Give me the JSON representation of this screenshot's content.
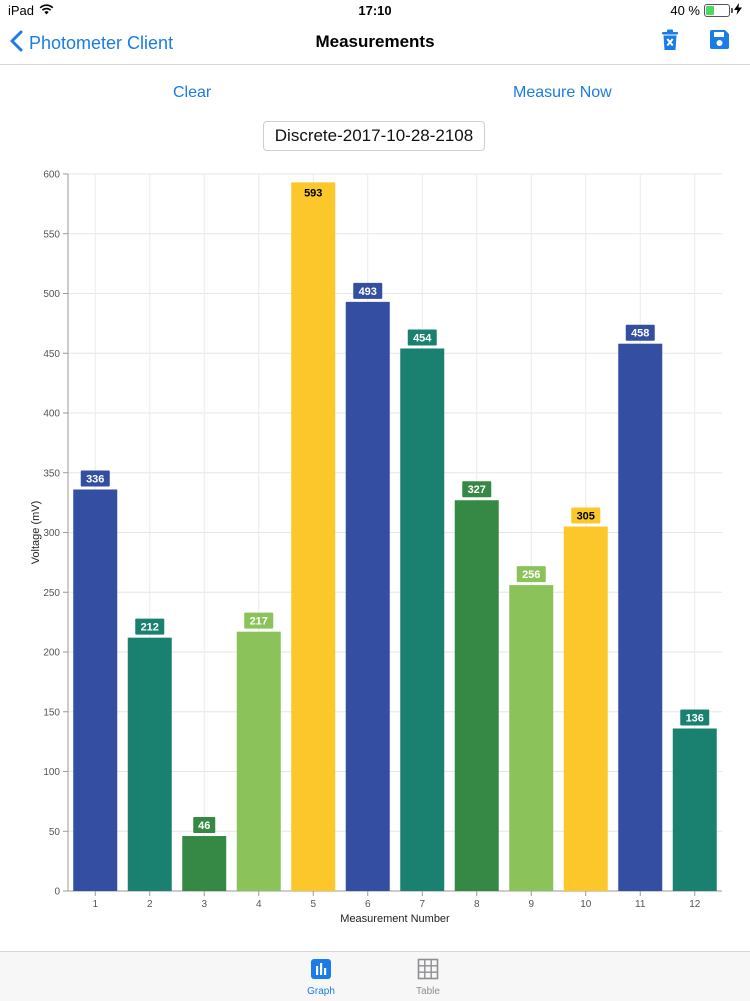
{
  "status": {
    "device": "iPad",
    "time": "17:10",
    "battery": "40 %",
    "battery_level": 0.4
  },
  "nav": {
    "back_label": "Photometer Client",
    "title": "Measurements",
    "icons": [
      "trash-icon",
      "save-icon"
    ]
  },
  "actions": {
    "clear": "Clear",
    "measure_now": "Measure Now"
  },
  "measurement_name": "Discrete-2017-10-28-2108",
  "chart_data": {
    "type": "bar",
    "categories": [
      "1",
      "2",
      "3",
      "4",
      "5",
      "6",
      "7",
      "8",
      "9",
      "10",
      "11",
      "12"
    ],
    "values": [
      336,
      212,
      46,
      217,
      593,
      493,
      454,
      327,
      256,
      305,
      458,
      136
    ],
    "colors": [
      "#344ea1",
      "#1a8170",
      "#368944",
      "#8bc35a",
      "#fcc72a",
      "#344ea1",
      "#1a8170",
      "#368944",
      "#8bc35a",
      "#fcc72a",
      "#344ea1",
      "#1a8170"
    ],
    "label_text_colors": [
      "#ffffff",
      "#ffffff",
      "#ffffff",
      "#ffffff",
      "#000000",
      "#ffffff",
      "#ffffff",
      "#ffffff",
      "#ffffff",
      "#000000",
      "#ffffff",
      "#ffffff"
    ],
    "xlabel": "Measurement Number",
    "ylabel": "Voltage (mV)",
    "ylim": [
      0,
      600
    ],
    "yticks": [
      0,
      50,
      100,
      150,
      200,
      250,
      300,
      350,
      400,
      450,
      500,
      550,
      600
    ],
    "grid": true
  },
  "tabs": [
    {
      "label": "Graph",
      "icon": "bar-chart-icon",
      "active": true
    },
    {
      "label": "Table",
      "icon": "grid-icon",
      "active": false
    }
  ]
}
